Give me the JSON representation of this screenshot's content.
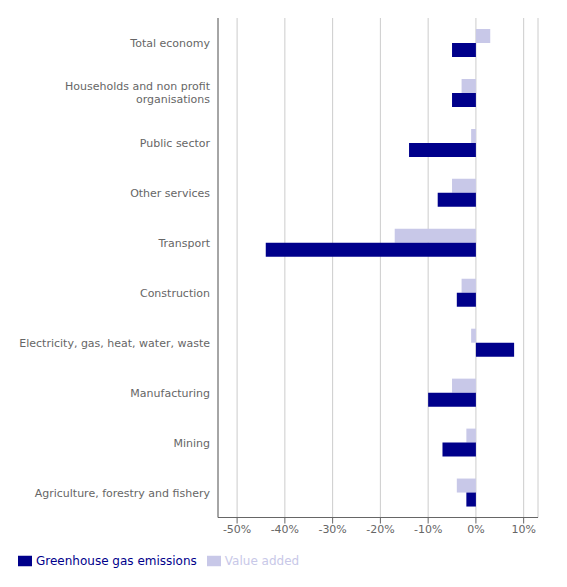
{
  "chart_data": {
    "type": "bar",
    "orientation": "horizontal",
    "categories": [
      "Agriculture, forestry and fishery",
      "Mining",
      "Manufacturing",
      "Electricity, gas, heat, water, waste",
      "Construction",
      "Transport",
      "Other services",
      "Public sector",
      "Households and non profit\norganisations",
      "Total economy"
    ],
    "series": [
      {
        "name": "Value added",
        "color": "#c8c8e8",
        "values": [
          -4,
          -2,
          -5,
          -1,
          -3,
          -17,
          -5,
          -1,
          -3,
          3
        ]
      },
      {
        "name": "Greenhouse gas emissions",
        "color": "#00008b",
        "values": [
          -2,
          -7,
          -10,
          8,
          -4,
          -44,
          -8,
          -14,
          -5,
          -5
        ]
      }
    ],
    "xlim": [
      -54,
      13
    ],
    "xticks": [
      {
        "value": -50,
        "label": "-50%"
      },
      {
        "value": -40,
        "label": "-40%"
      },
      {
        "value": -30,
        "label": "-30%"
      },
      {
        "value": -20,
        "label": "-20%"
      },
      {
        "value": -10,
        "label": "-10%"
      },
      {
        "value": 0,
        "label": "0%"
      },
      {
        "value": 10,
        "label": "10%"
      }
    ],
    "grid": true,
    "legend": "lower left"
  }
}
